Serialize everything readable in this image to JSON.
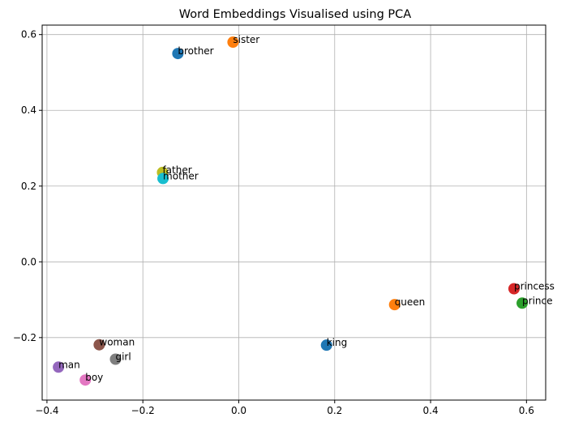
{
  "chart_data": {
    "type": "scatter",
    "title": "Word Embeddings Visualised using PCA",
    "xlabel": "",
    "ylabel": "",
    "xlim": [
      -0.41,
      0.64
    ],
    "ylim": [
      -0.365,
      0.625
    ],
    "x_ticks": [
      -0.4,
      -0.2,
      0.0,
      0.2,
      0.4,
      0.6
    ],
    "x_tick_labels": [
      "−0.4",
      "−0.2",
      "0.0",
      "0.2",
      "0.4",
      "0.6"
    ],
    "y_ticks": [
      -0.2,
      0.0,
      0.2,
      0.4,
      0.6
    ],
    "y_tick_labels": [
      "−0.2",
      "0.0",
      "0.2",
      "0.4",
      "0.6"
    ],
    "grid": true,
    "points": [
      {
        "label": "king",
        "x": 0.183,
        "y": -0.22,
        "color": "#1f77b4"
      },
      {
        "label": "queen",
        "x": 0.325,
        "y": -0.113,
        "color": "#ff7f0e"
      },
      {
        "label": "prince",
        "x": 0.591,
        "y": -0.109,
        "color": "#2ca02c"
      },
      {
        "label": "princess",
        "x": 0.574,
        "y": -0.071,
        "color": "#d62728"
      },
      {
        "label": "man",
        "x": -0.376,
        "y": -0.278,
        "color": "#9467bd"
      },
      {
        "label": "woman",
        "x": -0.291,
        "y": -0.219,
        "color": "#8c564b"
      },
      {
        "label": "boy",
        "x": -0.32,
        "y": -0.312,
        "color": "#e377c2"
      },
      {
        "label": "girl",
        "x": -0.257,
        "y": -0.257,
        "color": "#7f7f7f"
      },
      {
        "label": "father",
        "x": -0.159,
        "y": 0.236,
        "color": "#bcbd22"
      },
      {
        "label": "mother",
        "x": -0.158,
        "y": 0.22,
        "color": "#17becf"
      },
      {
        "label": "brother",
        "x": -0.127,
        "y": 0.55,
        "color": "#1f77b4"
      },
      {
        "label": "sister",
        "x": -0.012,
        "y": 0.58,
        "color": "#ff7f0e"
      }
    ]
  }
}
